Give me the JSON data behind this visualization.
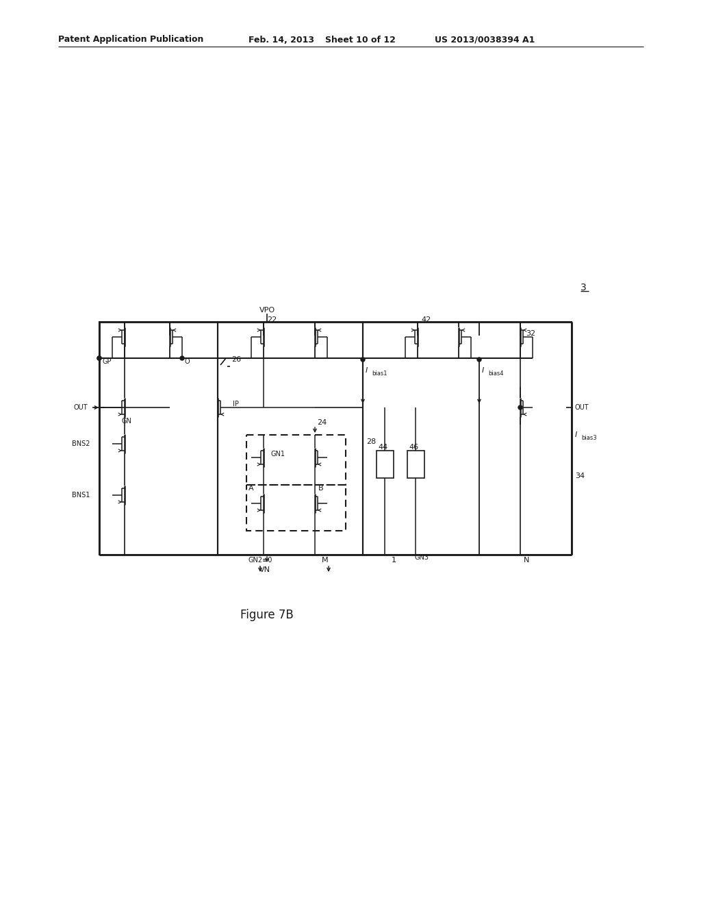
{
  "bg": "#ffffff",
  "line_color": "#1a1a1a",
  "header_left": "Patent Application Publication",
  "header_mid": "Feb. 14, 2013",
  "header_sheet": "Sheet 10 of 12",
  "header_right": "US 2013/0038394 A1",
  "fig_label": "Figure 7B",
  "circuit_ref": "3",
  "vpo": "VPO",
  "vn": "VN",
  "label_22": "22",
  "label_42": "42",
  "label_32": "32",
  "label_GP": "GP",
  "label_O": "O",
  "label_26": "26",
  "label_Ibias1": "I",
  "label_bias1": "bias1",
  "label_Ibias4": "I",
  "label_bias4": "bias4",
  "label_Ibias3": "I",
  "label_bias3": "bias3",
  "label_OUT": "OUT",
  "label_IP": "IP",
  "label_GN": "GN",
  "label_24": "24",
  "label_BNS2": "BNS2",
  "label_BNS1": "BNS1",
  "label_GN1": "GN1",
  "label_28": "28",
  "label_44": "44",
  "label_46": "46",
  "label_34": "34",
  "label_A": "A",
  "label_B": "B",
  "label_GN2": "GN2≡0",
  "label_M": "M",
  "label_1": "1",
  "label_GN3": "GN3",
  "label_N": "N"
}
